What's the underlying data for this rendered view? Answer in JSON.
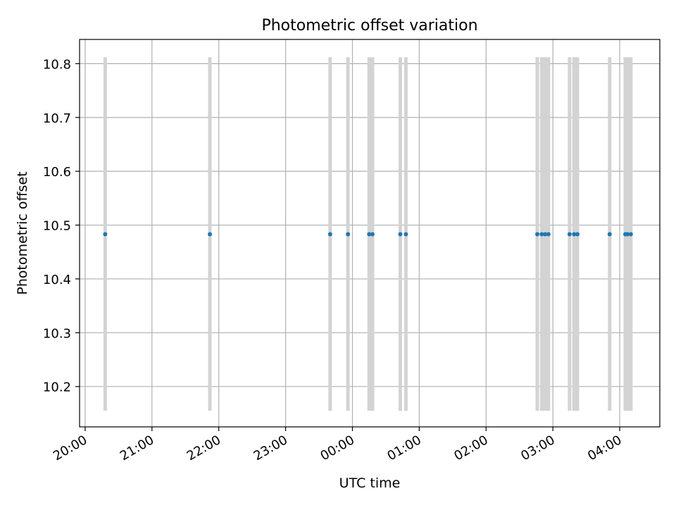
{
  "chart_data": {
    "type": "scatter",
    "title": "Photometric offset variation",
    "xlabel": "UTC time",
    "ylabel": "Photometric offset",
    "x_axis_kind": "time",
    "x_range": [
      "19:55",
      "04:36"
    ],
    "ylim": [
      10.125,
      10.845
    ],
    "grid": true,
    "legend": "none",
    "x_ticks": [
      "20:00",
      "21:00",
      "22:00",
      "23:00",
      "00:00",
      "01:00",
      "02:00",
      "03:00",
      "04:00"
    ],
    "y_ticks": [
      "10.2",
      "10.3",
      "10.4",
      "10.5",
      "10.6",
      "10.7",
      "10.8"
    ],
    "points": {
      "x": [
        "20:18",
        "21:52",
        "23:40",
        "23:56",
        "00:15",
        "00:18",
        "00:43",
        "00:48",
        "02:46",
        "02:50",
        "02:53",
        "02:56",
        "03:15",
        "03:19",
        "03:22",
        "03:51",
        "04:05",
        "04:07",
        "04:10"
      ],
      "y": [
        10.483,
        10.483,
        10.483,
        10.483,
        10.483,
        10.483,
        10.483,
        10.483,
        10.483,
        10.483,
        10.483,
        10.483,
        10.483,
        10.483,
        10.483,
        10.483,
        10.483,
        10.483,
        10.483
      ],
      "color": "#1f77b4"
    },
    "errorbars": {
      "low": 10.155,
      "high": 10.812,
      "color": "#d3d3d3"
    }
  }
}
